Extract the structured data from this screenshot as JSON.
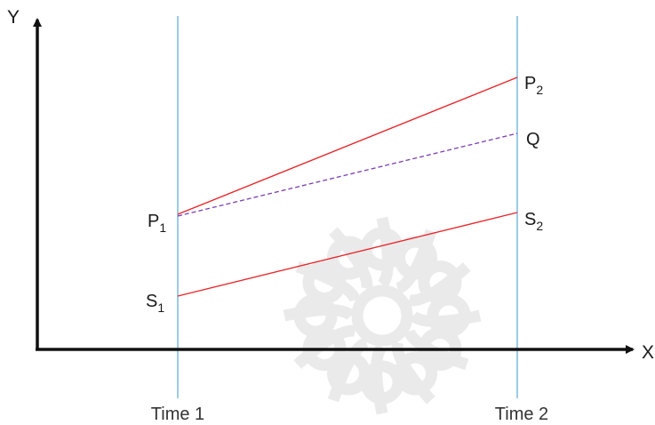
{
  "axes": {
    "y_label": "Y",
    "x_label": "X"
  },
  "time_labels": {
    "time1": "Time 1",
    "time2": "Time 2"
  },
  "points": {
    "p1": {
      "letter": "P",
      "sub": "1"
    },
    "s1": {
      "letter": "S",
      "sub": "1"
    },
    "p2": {
      "letter": "P",
      "sub": "2"
    },
    "q": {
      "letter": "Q"
    },
    "s2": {
      "letter": "S",
      "sub": "2"
    }
  },
  "colors": {
    "axis": "#111111",
    "time_line": "#5aa9d6",
    "solid_line": "#e8262b",
    "dashed_line": "#7a3fb0",
    "watermark": "#d9d9d9"
  },
  "watermark": {
    "icon": "star-rosette-watermark"
  }
}
